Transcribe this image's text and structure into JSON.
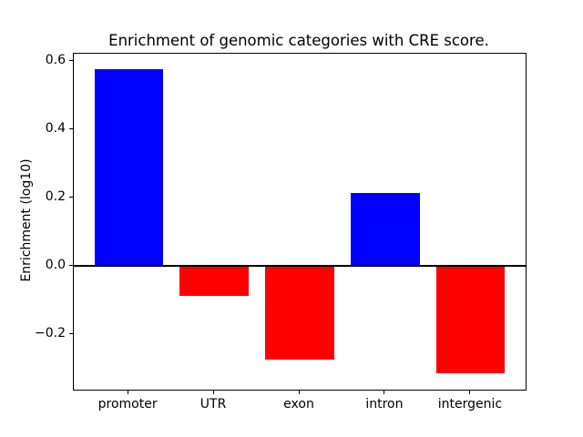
{
  "chart_data": {
    "type": "bar",
    "title": "Enrichment of genomic categories with CRE score.",
    "xlabel": "",
    "ylabel": "Enrichment (log10)",
    "categories": [
      "promoter",
      "UTR",
      "exon",
      "intron",
      "intergenic"
    ],
    "values": [
      0.575,
      -0.088,
      -0.273,
      0.213,
      -0.314
    ],
    "bar_colors": [
      "#0000ff",
      "#ff0000",
      "#ff0000",
      "#0000ff",
      "#ff0000"
    ],
    "positive_color": "#0000ff",
    "negative_color": "#ff0000",
    "zero_line_color": "#000000",
    "yticks": [
      0.6,
      0.4,
      0.2,
      0.0,
      -0.2
    ],
    "ytick_labels": [
      "0.6",
      "0.4",
      "0.2",
      "0.0",
      "−0.2"
    ],
    "ylim": [
      -0.362,
      0.62
    ],
    "xlim": [
      -0.64,
      4.64
    ],
    "bar_width_fraction": 0.8,
    "grid": false,
    "legend": null,
    "zero_line": true
  }
}
